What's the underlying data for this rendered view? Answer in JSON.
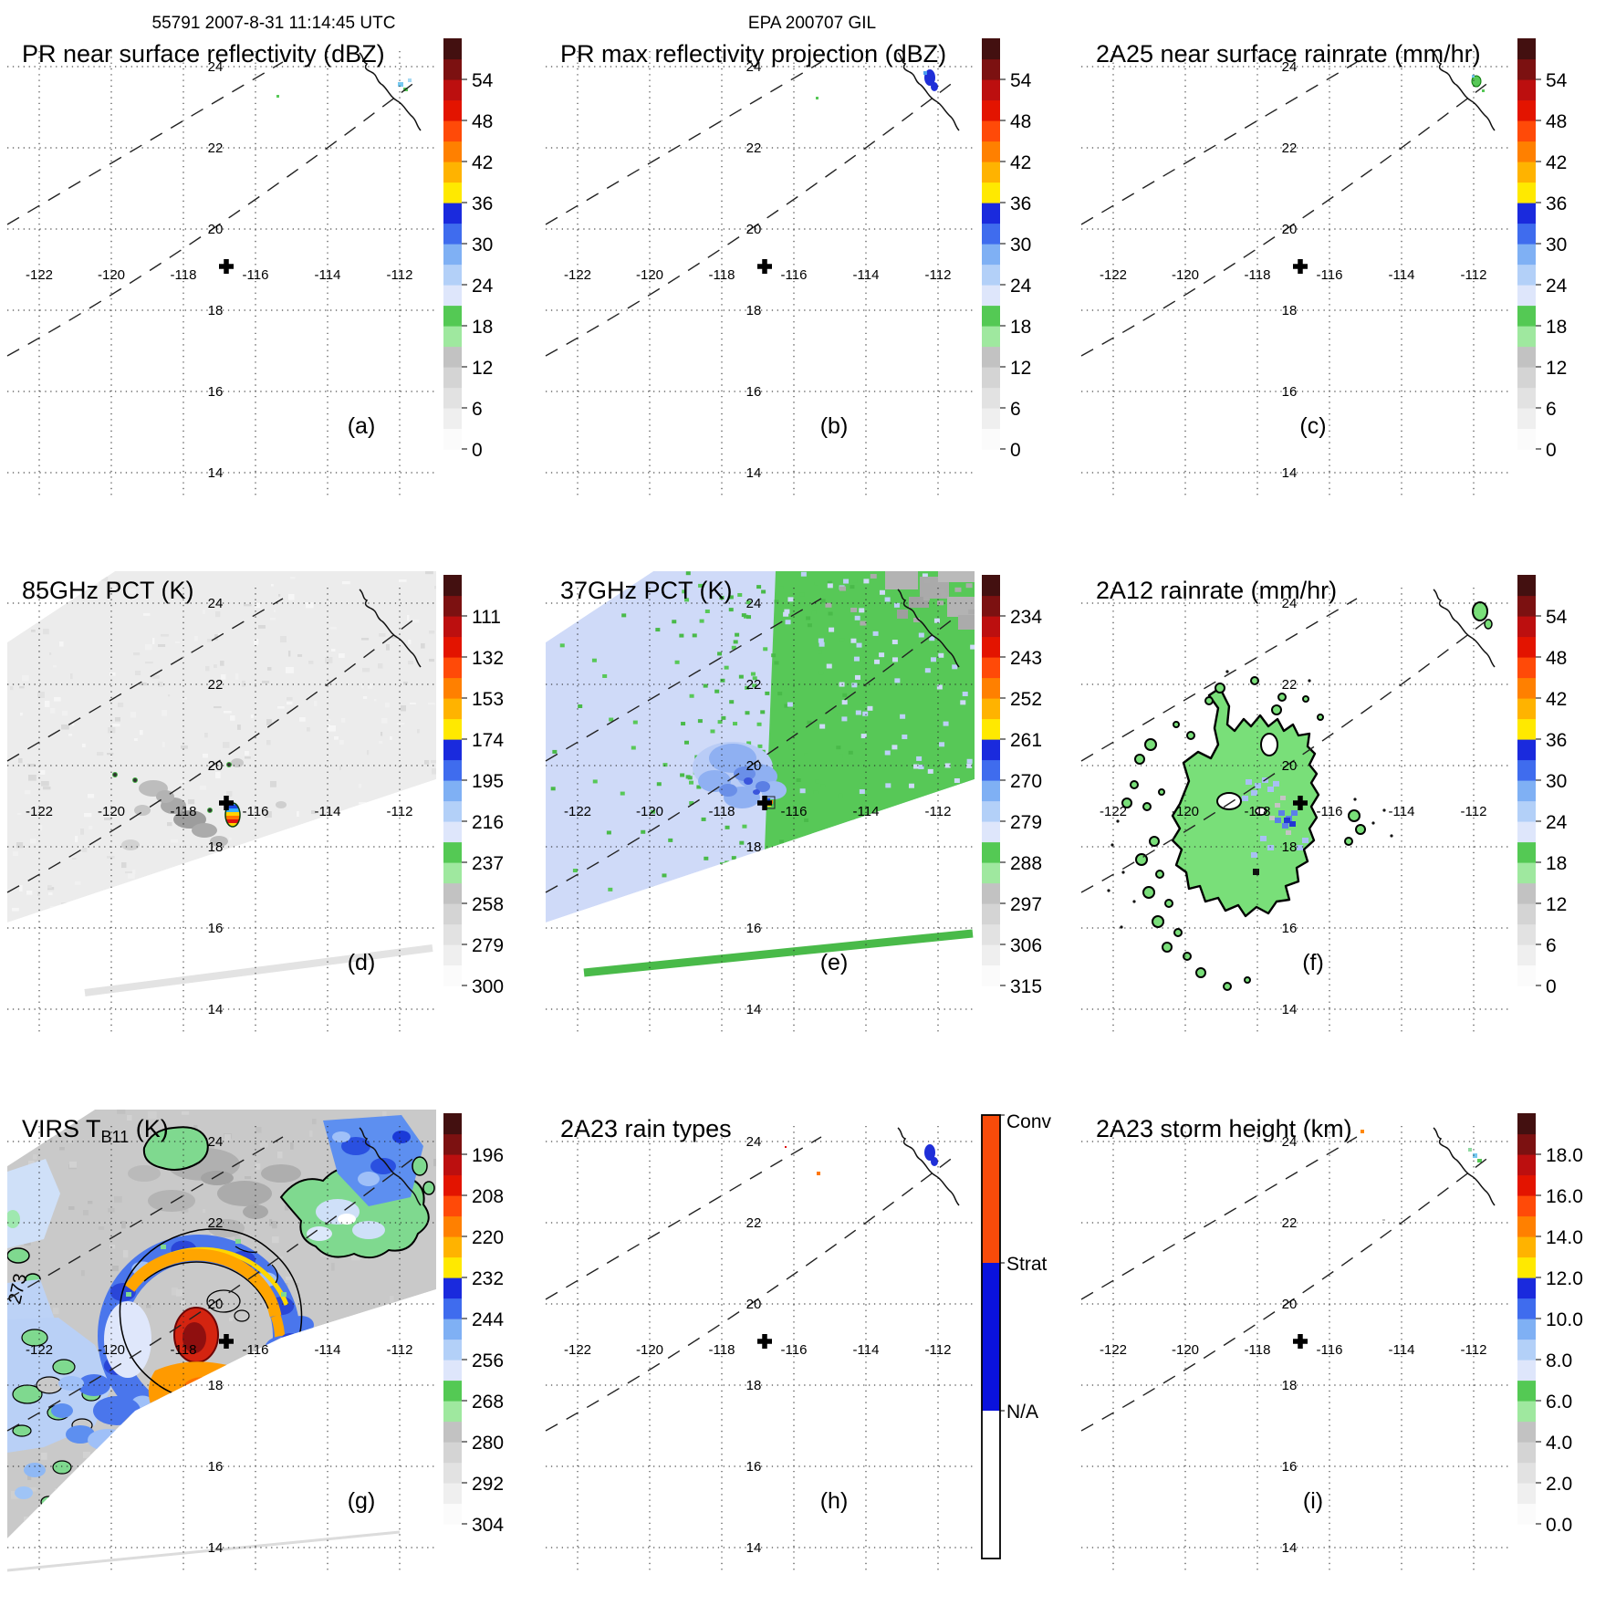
{
  "header": {
    "left": "55791 2007-8-31 11:14:45 UTC",
    "center": "EPA 200707 GIL"
  },
  "axes": {
    "lat_labels": [
      "24",
      "22",
      "20",
      "18",
      "16",
      "14"
    ],
    "lon_labels": [
      "-122",
      "-120",
      "-118",
      "-116",
      "-114",
      "-112"
    ]
  },
  "marker": {
    "symbol": "+"
  },
  "palette": {
    "ramp": [
      "#fbfbfb",
      "#efefef",
      "#e2e2e2",
      "#d4d4d4",
      "#c2c2c2",
      "#9fe89f",
      "#54c954",
      "#dee6fb",
      "#b3d0f8",
      "#7fb0f4",
      "#3f6cee",
      "#1a2add",
      "#ffe900",
      "#ffb300",
      "#ff8000",
      "#ff4a08",
      "#e31400",
      "#bc0f0f",
      "#7c1111",
      "#431010"
    ],
    "rain_types": {
      "conv": "#f84b0a",
      "strat": "#0a12dd",
      "na": "#ffffff"
    }
  },
  "panels": [
    {
      "id": "a",
      "title": "PR near surface reflectivity (dBZ)",
      "title_sub": "",
      "title_end": "",
      "letter": "(a)",
      "colorbar": {
        "kind": "ramp",
        "ticks": [
          "54",
          "48",
          "42",
          "36",
          "30",
          "24",
          "18",
          "12",
          "6",
          "0"
        ]
      }
    },
    {
      "id": "b",
      "title": "PR max reflectivity projection (dBZ)",
      "title_sub": "",
      "title_end": "",
      "letter": "(b)",
      "colorbar": {
        "kind": "ramp",
        "ticks": [
          "54",
          "48",
          "42",
          "36",
          "30",
          "24",
          "18",
          "12",
          "6",
          "0"
        ]
      }
    },
    {
      "id": "c",
      "title": "2A25 near surface rainrate (mm/hr)",
      "title_sub": "",
      "title_end": "",
      "letter": "(c)",
      "colorbar": {
        "kind": "ramp",
        "ticks": [
          "54",
          "48",
          "42",
          "36",
          "30",
          "24",
          "18",
          "12",
          "6",
          "0"
        ]
      }
    },
    {
      "id": "d",
      "title": "85GHz PCT (K)",
      "title_sub": "",
      "title_end": "",
      "letter": "(d)",
      "colorbar": {
        "kind": "ramp",
        "ticks": [
          "111",
          "132",
          "153",
          "174",
          "195",
          "216",
          "237",
          "258",
          "279",
          "300"
        ]
      }
    },
    {
      "id": "e",
      "title": "37GHz PCT (K)",
      "title_sub": "",
      "title_end": "",
      "letter": "(e)",
      "colorbar": {
        "kind": "ramp",
        "ticks": [
          "234",
          "243",
          "252",
          "261",
          "270",
          "279",
          "288",
          "297",
          "306",
          "315"
        ]
      }
    },
    {
      "id": "f",
      "title": "2A12 rainrate (mm/hr)",
      "title_sub": "",
      "title_end": "",
      "letter": "(f)",
      "colorbar": {
        "kind": "ramp",
        "ticks": [
          "54",
          "48",
          "42",
          "36",
          "30",
          "24",
          "18",
          "12",
          "6",
          "0"
        ]
      }
    },
    {
      "id": "g",
      "title": "VIRS T",
      "title_sub": "B11",
      "title_end": " (K)",
      "letter": "(g)",
      "contour_label": "273",
      "colorbar": {
        "kind": "ramp",
        "ticks": [
          "196",
          "208",
          "220",
          "232",
          "244",
          "256",
          "268",
          "280",
          "292",
          "304"
        ]
      }
    },
    {
      "id": "h",
      "title": "2A23 rain types",
      "title_sub": "",
      "title_end": "",
      "letter": "(h)",
      "colorbar": {
        "kind": "raintype",
        "labels": [
          "Conv",
          "Strat",
          "N/A"
        ]
      }
    },
    {
      "id": "i",
      "title": "2A23 storm height (km)",
      "title_sub": "",
      "title_end": "",
      "letter": "(i)",
      "colorbar": {
        "kind": "ramp",
        "ticks": [
          "18.0",
          "16.0",
          "14.0",
          "12.0",
          "10.0",
          "8.0",
          "6.0",
          "4.0",
          "2.0",
          "0.0"
        ]
      }
    }
  ],
  "chart_data": [
    {
      "panel": "a",
      "type": "heatmap",
      "title": "PR near surface reflectivity (dBZ)",
      "units": "dBZ",
      "colorbar_ticks": [
        54,
        48,
        42,
        36,
        30,
        24,
        18,
        12,
        6,
        0
      ],
      "lon_ticks": [
        -122,
        -120,
        -118,
        -116,
        -114,
        -112
      ],
      "lat_ticks": [
        24,
        22,
        20,
        18,
        16,
        14
      ],
      "center_marker_lonlat": [
        -117.4,
        18.5
      ],
      "notes": "nearly empty swath; a few weak 18-30 dBZ echoes at the Baja California coastline"
    },
    {
      "panel": "b",
      "type": "heatmap",
      "title": "PR max reflectivity projection (dBZ)",
      "units": "dBZ",
      "colorbar_ticks": [
        54,
        48,
        42,
        36,
        30,
        24,
        18,
        12,
        6,
        0
      ],
      "lon_ticks": [
        -122,
        -120,
        -118,
        -116,
        -114,
        -112
      ],
      "lat_ticks": [
        24,
        22,
        20,
        18,
        16,
        14
      ],
      "center_marker_lonlat": [
        -117.4,
        18.5
      ],
      "notes": "small 24-36 dBZ echo cluster at the coastline"
    },
    {
      "panel": "c",
      "type": "heatmap",
      "title": "2A25 near surface rainrate (mm/hr)",
      "units": "mm/hr",
      "colorbar_ticks": [
        54,
        48,
        42,
        36,
        30,
        24,
        18,
        12,
        6,
        0
      ],
      "lon_ticks": [
        -122,
        -120,
        -118,
        -116,
        -114,
        -112
      ],
      "lat_ticks": [
        24,
        22,
        20,
        18,
        16,
        14
      ],
      "center_marker_lonlat": [
        -117.4,
        18.5
      ],
      "notes": "isolated light (0-6 mm/hr) rain pixels near the coastline"
    },
    {
      "panel": "d",
      "type": "heatmap",
      "title": "85GHz PCT (K)",
      "units": "K",
      "colorbar_ticks": [
        111,
        132,
        153,
        174,
        195,
        216,
        237,
        258,
        279,
        300
      ],
      "lon_ticks": [
        -122,
        -120,
        -118,
        -116,
        -114,
        -112
      ],
      "lat_ticks": [
        24,
        22,
        20,
        18,
        16,
        14
      ],
      "center_marker_lonlat": [
        -117.4,
        18.5
      ],
      "notes": "warm ~290-300 K background swath with gray ~260-280 K smudges and one small cold cell (~110-220 K) near -118.3, 18.8"
    },
    {
      "panel": "e",
      "type": "heatmap",
      "title": "37GHz PCT (K)",
      "units": "K",
      "colorbar_ticks": [
        234,
        243,
        252,
        261,
        270,
        279,
        288,
        297,
        306,
        315
      ],
      "lon_ticks": [
        -122,
        -120,
        -118,
        -116,
        -114,
        -112
      ],
      "lat_ticks": [
        24,
        22,
        20,
        18,
        16,
        14
      ],
      "center_marker_lonlat": [
        -117.4,
        18.5
      ],
      "notes": "~275-285 K ocean (pale blue) west, ~288-295 K (green) east, gray land in northeast, ~270 K blue patch and tiny cold cell near -118, 18.8; green band artifact along the swath lower edge"
    },
    {
      "panel": "f",
      "type": "heatmap",
      "title": "2A12 rainrate (mm/hr)",
      "units": "mm/hr",
      "colorbar_ticks": [
        54,
        48,
        42,
        36,
        30,
        24,
        18,
        12,
        6,
        0
      ],
      "lon_ticks": [
        -122,
        -120,
        -118,
        -116,
        -114,
        -112
      ],
      "lat_ticks": [
        24,
        22,
        20,
        18,
        16,
        14
      ],
      "center_marker_lonlat": [
        -117.4,
        18.5
      ],
      "notes": "contoured light-rain region (0-6 mm/hr green) spanning about -119.5..-116, 17.5..20.5 with embedded 6-24 mm/hr blue pixels; many small outlined rain specks to the west"
    },
    {
      "panel": "g",
      "type": "heatmap",
      "title": "VIRS TB11 (K)",
      "units": "K",
      "colorbar_ticks": [
        196,
        208,
        220,
        232,
        244,
        256,
        268,
        280,
        292,
        304
      ],
      "contour_label": 273,
      "lon_ticks": [
        -122,
        -120,
        -118,
        -116,
        -114,
        -112
      ],
      "lat_ticks": [
        24,
        22,
        20,
        18,
        16,
        14
      ],
      "center_marker_lonlat": [
        -117.4,
        18.5
      ],
      "notes": "cold cloud shield: 240-260 K blue ring, 200-230 K orange/yellow arc and <200 K dark-red core near -118, 18.7 over ~280-295 K gray background; 273 K contour labeled at left edge"
    },
    {
      "panel": "h",
      "type": "categorical-map",
      "title": "2A23 rain types",
      "categories": [
        "Conv",
        "Strat",
        "N/A"
      ],
      "lon_ticks": [
        -122,
        -120,
        -118,
        -116,
        -114,
        -112
      ],
      "lat_ticks": [
        24,
        22,
        20,
        18,
        16,
        14
      ],
      "center_marker_lonlat": [
        -117.4,
        18.5
      ],
      "notes": "a few convective (orange) pixels near the coastline and mid-swath"
    },
    {
      "panel": "i",
      "type": "heatmap",
      "title": "2A23 storm height (km)",
      "units": "km",
      "colorbar_ticks": [
        18.0,
        16.0,
        14.0,
        12.0,
        10.0,
        8.0,
        6.0,
        4.0,
        2.0,
        0.0
      ],
      "lon_ticks": [
        -122,
        -120,
        -118,
        -116,
        -114,
        -112
      ],
      "lat_ticks": [
        24,
        22,
        20,
        18,
        16,
        14
      ],
      "center_marker_lonlat": [
        -117.4,
        18.5
      ],
      "notes": "isolated storm-height pixels (~2-8 km) near the coastline"
    }
  ]
}
